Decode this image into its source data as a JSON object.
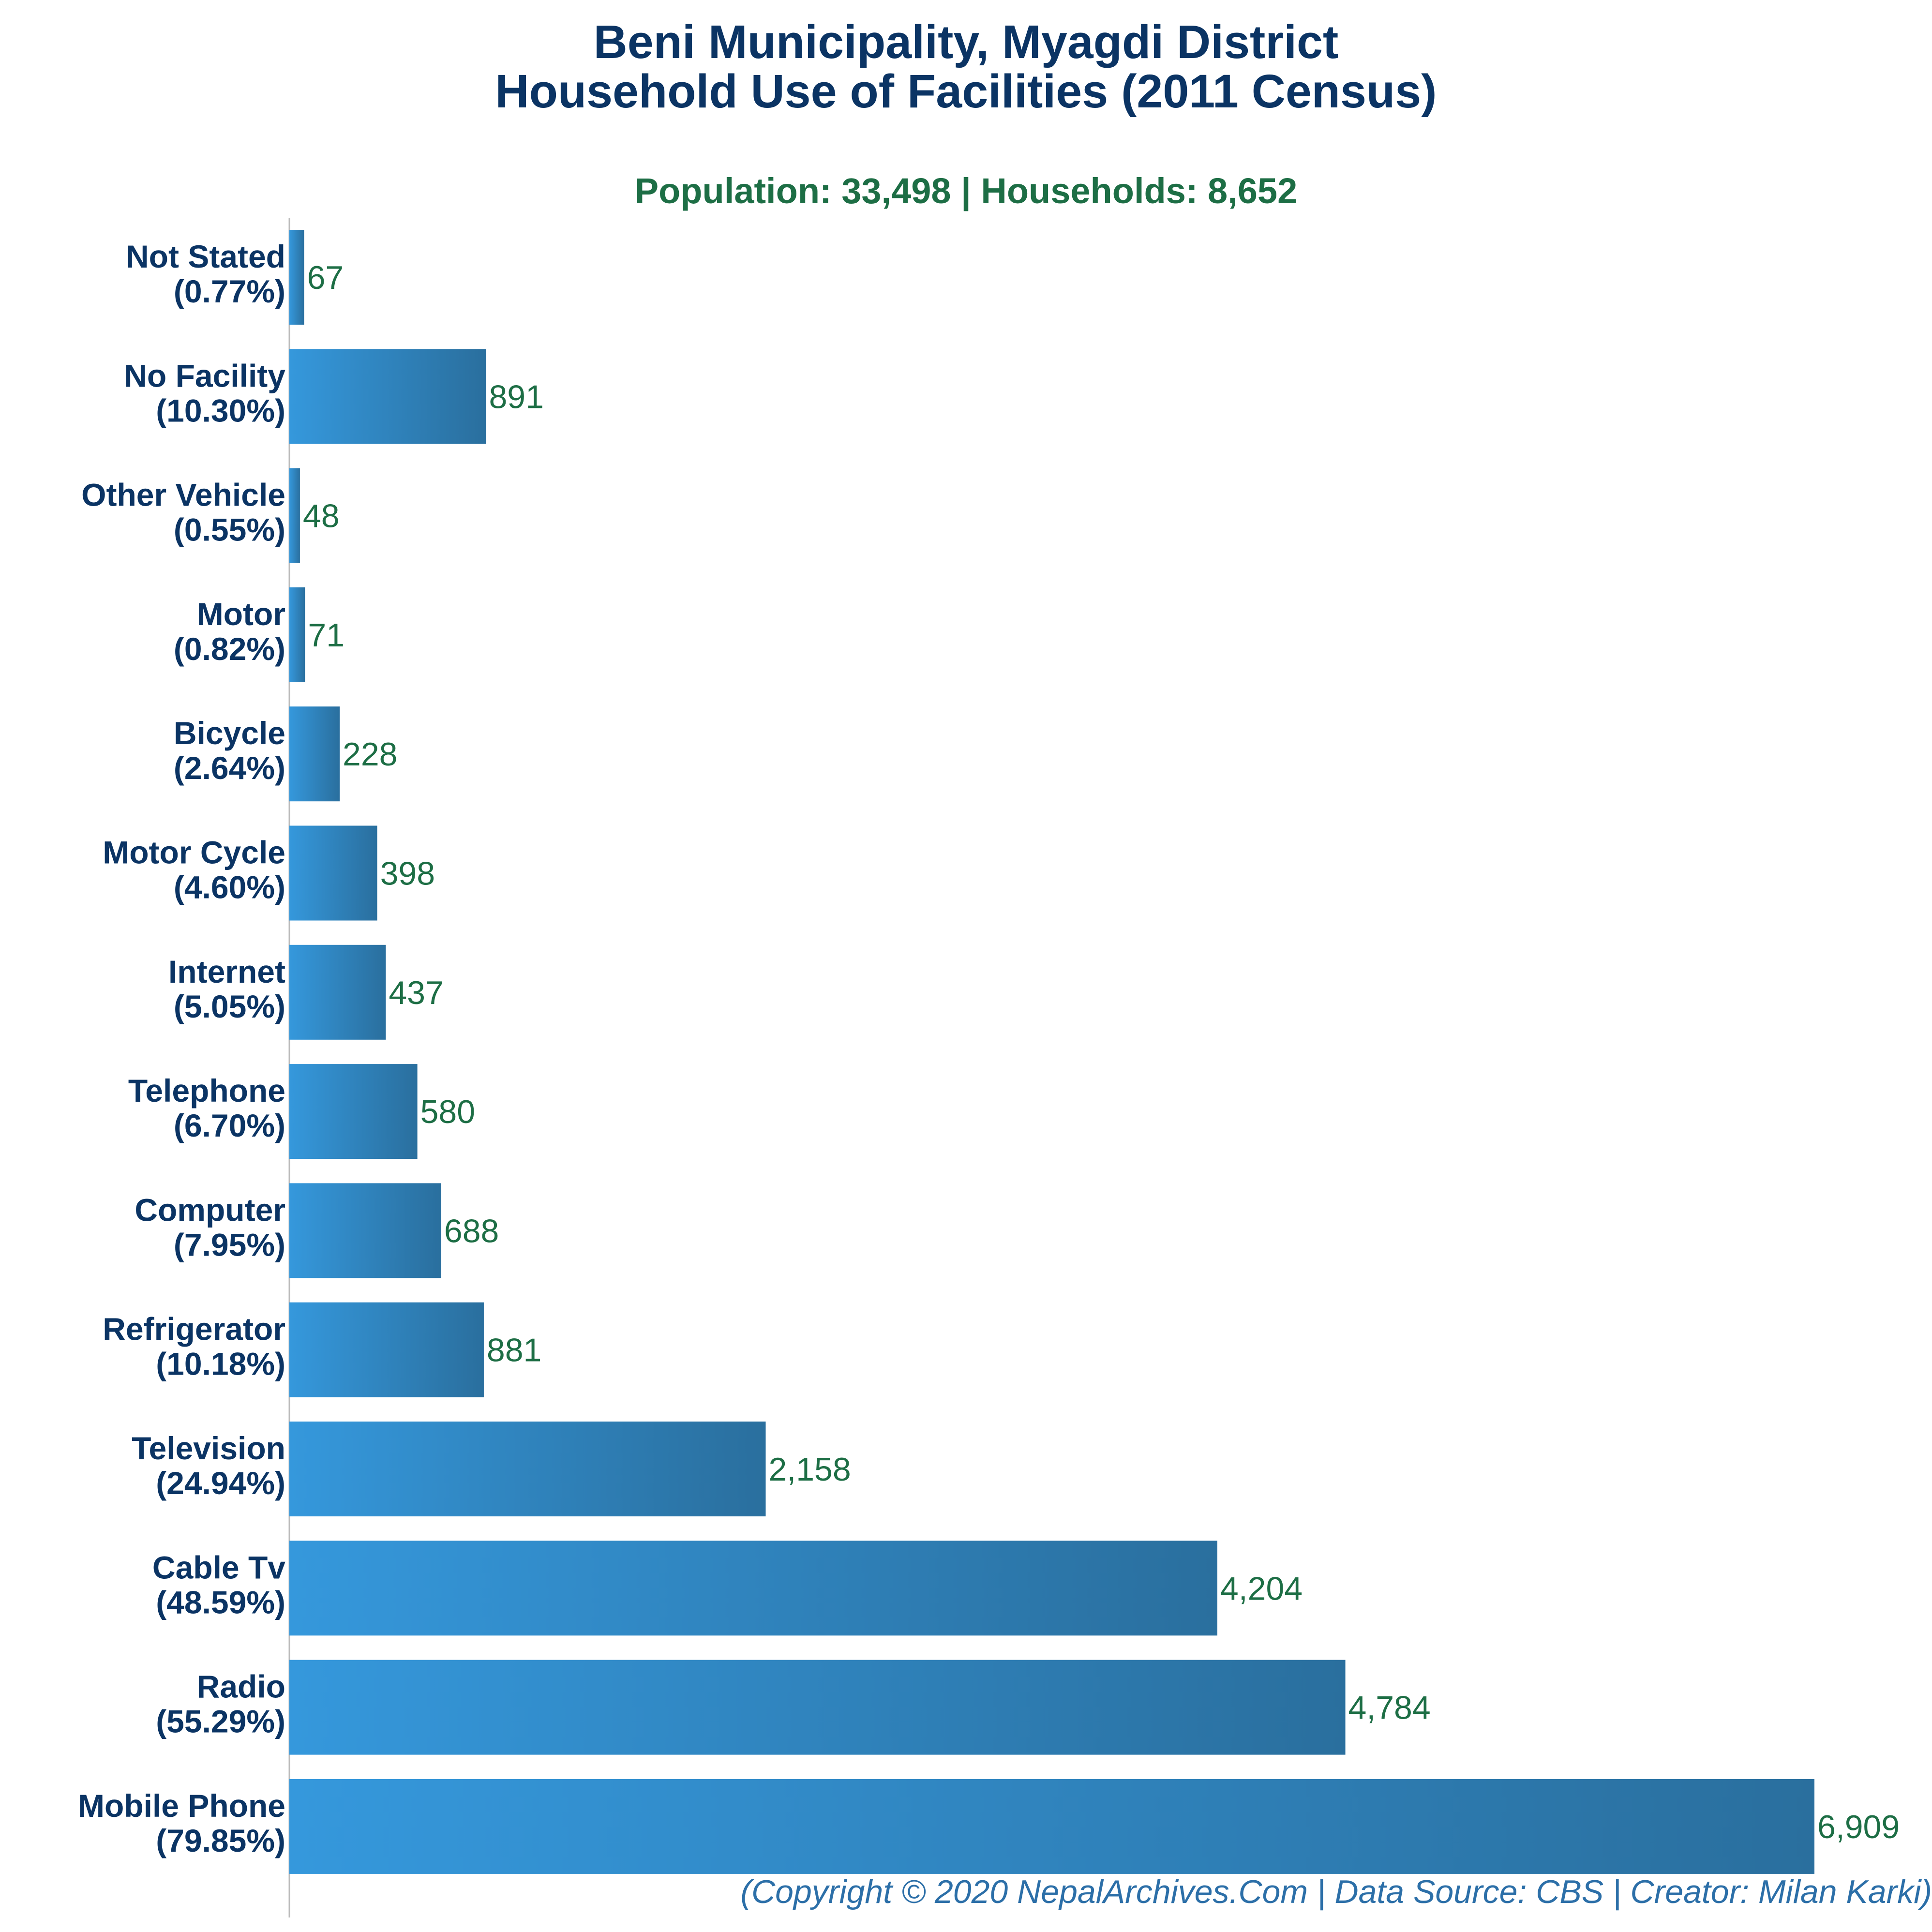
{
  "title_line1": "Beni Municipality, Myagdi District",
  "title_line2": "Household Use of Facilities (2011 Census)",
  "subtitle": "Population: 33,498 | Households: 8,652",
  "footer": "(Copyright © 2020 NepalArchives.Com | Data Source: CBS | Creator: Milan Karki)",
  "colors": {
    "title": "#0b3464",
    "subtitle": "#1d6e45",
    "value_label": "#1d6e45",
    "category_label": "#0b3464",
    "bar_left": "#3598dc",
    "bar_right": "#2a6f9e",
    "footer": "#2c6fa8"
  },
  "chart_data": {
    "type": "bar",
    "orientation": "horizontal",
    "categories": [
      "Not Stated",
      "No Facility",
      "Other Vehicle",
      "Motor",
      "Bicycle",
      "Motor Cycle",
      "Internet",
      "Telephone",
      "Computer",
      "Refrigerator",
      "Television",
      "Cable Tv",
      "Radio",
      "Mobile Phone"
    ],
    "percent_labels": [
      "(0.77%)",
      "(10.30%)",
      "(0.55%)",
      "(0.82%)",
      "(2.64%)",
      "(4.60%)",
      "(5.05%)",
      "(6.70%)",
      "(7.95%)",
      "(10.18%)",
      "(24.94%)",
      "(48.59%)",
      "(55.29%)",
      "(79.85%)"
    ],
    "values": [
      67,
      891,
      48,
      71,
      228,
      398,
      437,
      580,
      688,
      881,
      2158,
      4204,
      4784,
      6909
    ],
    "value_labels": [
      "67",
      "891",
      "48",
      "71",
      "228",
      "398",
      "437",
      "580",
      "688",
      "881",
      "2,158",
      "4,204",
      "4,784",
      "6,909"
    ],
    "xlim": [
      0,
      6909
    ],
    "grid": false,
    "legend": "none"
  }
}
